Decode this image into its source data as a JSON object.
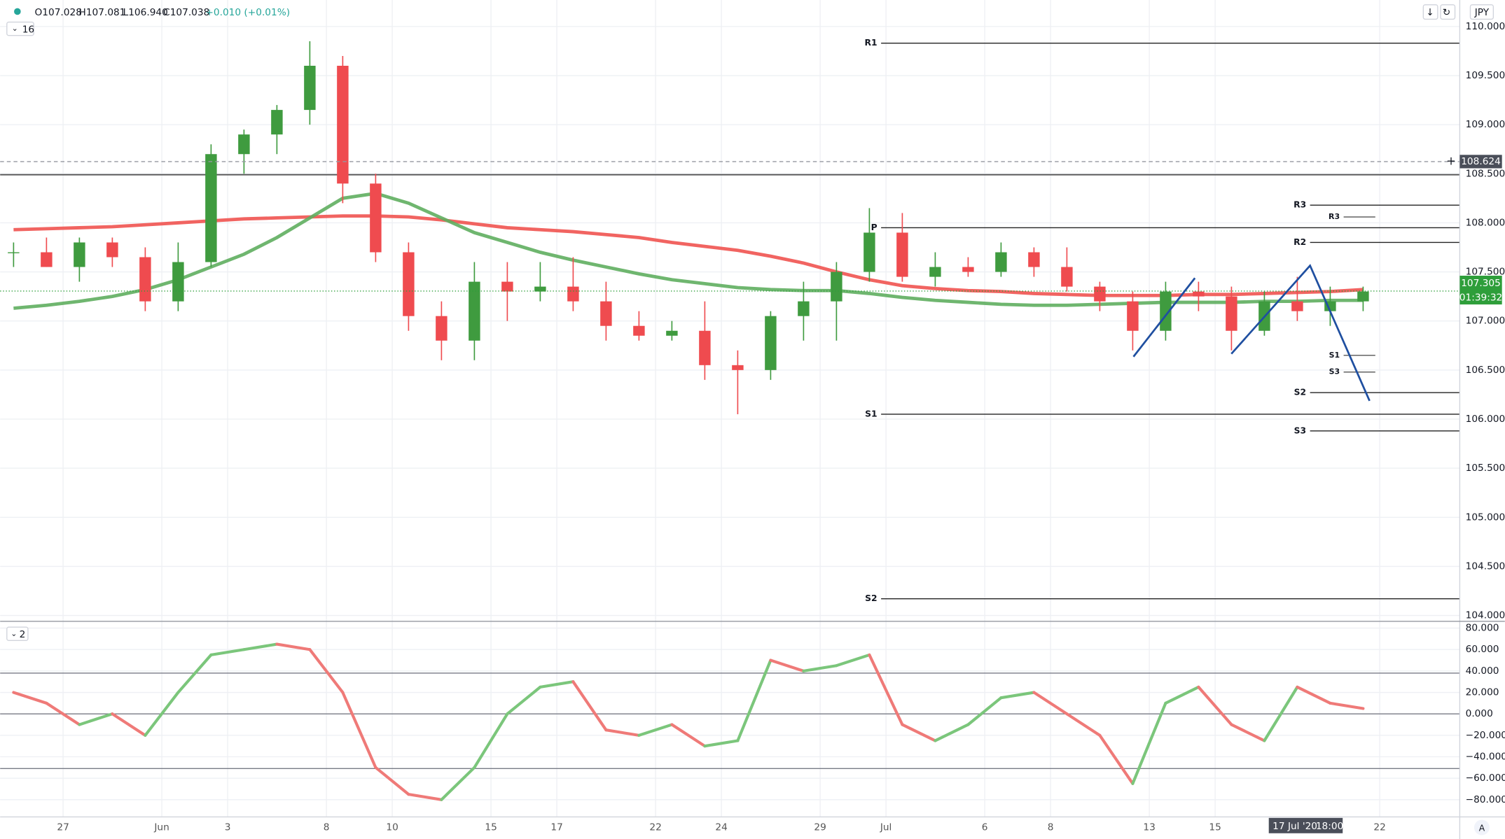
{
  "chart_data": {
    "type": "candlestick",
    "symbol_dot_color": "#26a69a",
    "legend": {
      "open": "O107.028",
      "high": "H107.081",
      "low": "L106.940",
      "close": "C107.038",
      "change": "+0.010 (+0.01%)"
    },
    "main_indicator_count": "16",
    "osc_indicator_count": "2",
    "currency": "JPY",
    "scale_mode": "A",
    "categories": [
      null,
      null,
      "27",
      null,
      null,
      "Jun",
      null,
      "3",
      null,
      null,
      "8",
      null,
      "10",
      null,
      null,
      "15",
      null,
      "17",
      null,
      null,
      "22",
      null,
      "24",
      null,
      null,
      "29",
      null,
      "Jul",
      null,
      null,
      "6",
      null,
      "8",
      null,
      null,
      "13",
      null,
      "15",
      null,
      null,
      null,
      null,
      "22"
    ],
    "up_color": "#3f9b3f",
    "down_color": "#ef4b4f",
    "open": [
      107.7,
      107.7,
      107.55,
      107.8,
      107.65,
      107.2,
      107.6,
      108.7,
      108.9,
      109.15,
      109.6,
      108.4,
      107.7,
      107.05,
      106.8,
      107.4,
      107.3,
      107.35,
      107.2,
      106.95,
      106.85,
      106.9,
      106.55,
      106.5,
      107.05,
      107.2,
      107.5,
      107.9,
      107.45,
      107.55,
      107.5,
      107.7,
      107.55,
      107.35,
      107.2,
      106.9,
      107.3,
      107.25,
      106.9,
      107.2,
      107.1,
      107.2,
      null
    ],
    "high": [
      107.8,
      107.85,
      107.85,
      107.85,
      107.75,
      107.8,
      108.8,
      108.95,
      109.2,
      109.85,
      109.7,
      108.5,
      107.8,
      107.2,
      107.6,
      107.6,
      107.6,
      107.65,
      107.4,
      107.1,
      107.0,
      107.2,
      106.7,
      107.1,
      107.4,
      107.6,
      108.15,
      108.1,
      107.7,
      107.65,
      107.8,
      107.75,
      107.75,
      107.4,
      107.3,
      107.4,
      107.4,
      107.35,
      107.3,
      107.45,
      107.35,
      107.35,
      null
    ],
    "low": [
      107.55,
      107.55,
      107.4,
      107.55,
      107.1,
      107.1,
      107.55,
      108.5,
      108.7,
      109.0,
      108.2,
      107.6,
      106.9,
      106.6,
      106.6,
      107.0,
      107.2,
      107.1,
      106.8,
      106.8,
      106.8,
      106.4,
      106.05,
      106.4,
      106.8,
      106.8,
      107.4,
      107.4,
      107.35,
      107.45,
      107.45,
      107.45,
      107.3,
      107.1,
      106.7,
      106.8,
      107.1,
      106.7,
      106.85,
      107.0,
      106.95,
      107.1,
      null
    ],
    "close": [
      107.7,
      107.55,
      107.8,
      107.65,
      107.2,
      107.6,
      108.7,
      108.9,
      109.15,
      109.6,
      108.4,
      107.7,
      107.05,
      106.8,
      107.4,
      107.3,
      107.35,
      107.2,
      106.95,
      106.85,
      106.9,
      106.55,
      106.5,
      107.05,
      107.2,
      107.5,
      107.9,
      107.45,
      107.55,
      107.5,
      107.7,
      107.55,
      107.35,
      107.2,
      106.9,
      107.3,
      107.25,
      106.9,
      107.2,
      107.1,
      107.2,
      107.3,
      null
    ],
    "overlays": [
      {
        "color": "#ef5350",
        "values": [
          107.93,
          107.94,
          107.95,
          107.96,
          107.98,
          108.0,
          108.02,
          108.04,
          108.05,
          108.06,
          108.07,
          108.07,
          108.06,
          108.03,
          107.99,
          107.95,
          107.93,
          107.91,
          107.88,
          107.85,
          107.8,
          107.76,
          107.72,
          107.66,
          107.59,
          107.5,
          107.42,
          107.36,
          107.33,
          107.31,
          107.3,
          107.28,
          107.27,
          107.26,
          107.26,
          107.26,
          107.27,
          107.27,
          107.28,
          107.29,
          107.3,
          107.32,
          null
        ]
      },
      {
        "color": "#5fae5f",
        "values": [
          107.13,
          107.16,
          107.2,
          107.25,
          107.32,
          107.42,
          107.55,
          107.68,
          107.85,
          108.05,
          108.25,
          108.3,
          108.2,
          108.05,
          107.9,
          107.8,
          107.7,
          107.62,
          107.55,
          107.48,
          107.42,
          107.38,
          107.34,
          107.32,
          107.31,
          107.31,
          107.28,
          107.24,
          107.21,
          107.19,
          107.17,
          107.16,
          107.16,
          107.17,
          107.18,
          107.19,
          107.19,
          107.19,
          107.2,
          107.2,
          107.21,
          107.21,
          null
        ]
      }
    ],
    "ylim": [
      103.94,
      110.27
    ],
    "yticks": [
      {
        "value": 104,
        "label": "104.000"
      },
      {
        "value": 104.5,
        "label": "104.500"
      },
      {
        "value": 105,
        "label": "105.000"
      },
      {
        "value": 105.5,
        "label": "105.500"
      },
      {
        "value": 106,
        "label": "106.000"
      },
      {
        "value": 106.5,
        "label": "106.500"
      },
      {
        "value": 107,
        "label": "107.000"
      },
      {
        "value": 107.5,
        "label": "107.500"
      },
      {
        "value": 108,
        "label": "108.000"
      },
      {
        "value": 108.5,
        "label": "108.500"
      },
      {
        "value": 109,
        "label": "109.000"
      },
      {
        "value": 109.5,
        "label": "109.500"
      },
      {
        "value": 110,
        "label": "110.000"
      }
    ],
    "horizontal_line": 108.49,
    "crosshair": {
      "price": {
        "value": 108.624,
        "label": "108.624"
      },
      "time": "17 Jul '20",
      "hour": "18:00"
    },
    "last_price": {
      "value": 107.305,
      "label": "107.305",
      "countdown": "01:39:32",
      "color": "#2e9e3a"
    },
    "pivots_monthly": [
      {
        "label": "R1",
        "value": 109.83
      },
      {
        "label": "P",
        "value": 107.95
      },
      {
        "label": "S1",
        "value": 106.05
      },
      {
        "label": "S2",
        "value": 104.17
      }
    ],
    "pivots_weekly": [
      {
        "label": "R3",
        "value": 108.18
      },
      {
        "label": "R2",
        "value": 107.8
      },
      {
        "label": "S2",
        "value": 106.27
      },
      {
        "label": "S3",
        "value": 105.88
      }
    ],
    "pivots_daily": [
      {
        "label": "R3",
        "value": 108.06
      },
      {
        "label": "S1",
        "value": 106.65
      },
      {
        "label": "S3",
        "value": 106.48
      }
    ],
    "oscillator": {
      "values": [
        20,
        10,
        -10,
        0,
        -20,
        20,
        55,
        60,
        65,
        60,
        20,
        -50,
        -75,
        -80,
        -50,
        0,
        25,
        30,
        -15,
        -20,
        -10,
        -30,
        -25,
        50,
        40,
        45,
        55,
        -10,
        -25,
        -10,
        15,
        20,
        0,
        -20,
        -65,
        10,
        25,
        -10,
        -25,
        25,
        10,
        5,
        null
      ],
      "up_color": "#7bc67b",
      "down_color": "#ef7a78",
      "levels": [
        38,
        0,
        -51
      ],
      "ylim": [
        -96.1,
        84.5
      ],
      "yticks": [
        {
          "value": -80,
          "label": "−80.000"
        },
        {
          "value": -60,
          "label": "−60.000"
        },
        {
          "value": -40,
          "label": "−40.000"
        },
        {
          "value": -20,
          "label": "−20.000"
        },
        {
          "value": 0,
          "label": "0.000"
        },
        {
          "value": 20,
          "label": "20.000"
        },
        {
          "value": 40,
          "label": "40.000"
        },
        {
          "value": 60,
          "label": "60.000"
        },
        {
          "value": 80,
          "label": "80.000"
        }
      ]
    }
  }
}
